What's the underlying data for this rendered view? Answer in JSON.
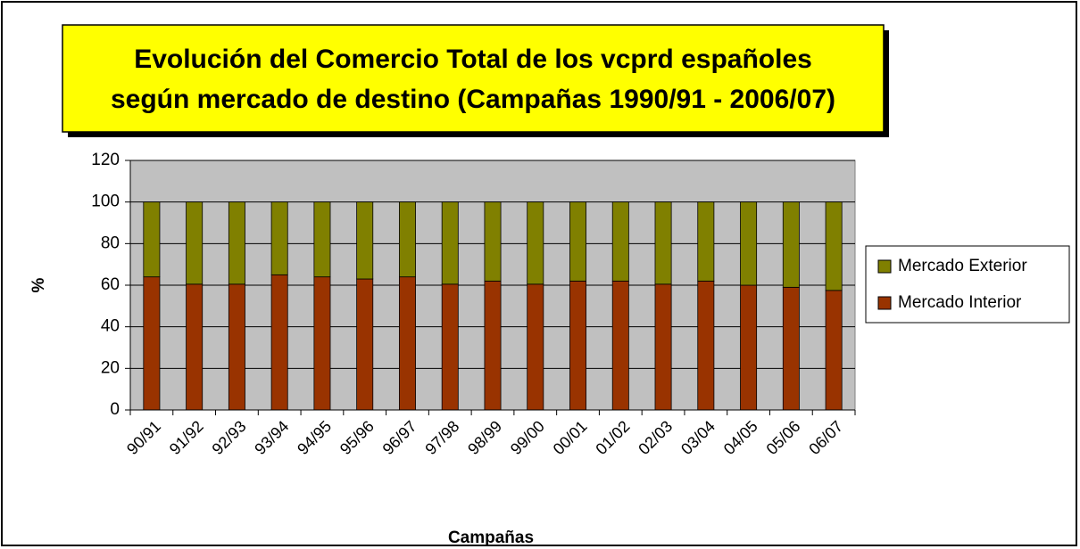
{
  "chart_data": {
    "type": "stacked_bar",
    "title": "Evolución del Comercio Total de los vcprd españoles",
    "subtitle": "según mercado de destino (Campañas 1990/91 - 2006/07)",
    "x_label": "Campañas",
    "y_label": "%",
    "categories": [
      "90/91",
      "91/92",
      "92/93",
      "93/94",
      "94/95",
      "95/96",
      "96/97",
      "97/98",
      "98/99",
      "99/00",
      "00/01",
      "01/02",
      "02/03",
      "03/04",
      "04/05",
      "05/06",
      "06/07"
    ],
    "series": [
      {
        "name": "Mercado Interior",
        "color": "#993300",
        "values": [
          64,
          60.5,
          60.5,
          65,
          64,
          63,
          64,
          60.5,
          62,
          60.5,
          62,
          62,
          60.5,
          62,
          60,
          59,
          57.5
        ]
      },
      {
        "name": "Mercado Exterior",
        "color": "#808000",
        "values": [
          36,
          39.5,
          39.5,
          35,
          36,
          37,
          36,
          39.5,
          38,
          39.5,
          38,
          38,
          39.5,
          38,
          40,
          41,
          42.5
        ]
      }
    ],
    "ylim": [
      0,
      120
    ],
    "yticks": [
      0,
      20,
      40,
      60,
      80,
      100,
      120
    ],
    "grid": true,
    "legend": "right"
  }
}
